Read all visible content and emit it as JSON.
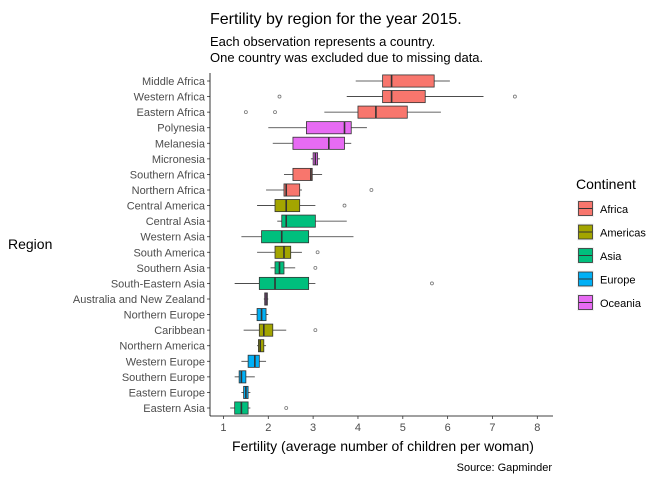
{
  "chart_data": {
    "type": "boxplot",
    "orientation": "horizontal",
    "title": "Fertility by region for the year 2015.",
    "subtitle_lines": [
      "Each observation represents a country.",
      "One country was excluded due to missing data."
    ],
    "caption": "Source: Gapminder",
    "xlabel": "Fertility (average number of children per woman)",
    "ylabel": "Region",
    "xlim": [
      0.7,
      8.35
    ],
    "x_ticks": [
      1,
      2,
      3,
      4,
      5,
      6,
      7,
      8
    ],
    "grid": false,
    "legend": {
      "title": "Continent",
      "placement": "right",
      "entries": [
        {
          "name": "Africa",
          "color": "#F8766D"
        },
        {
          "name": "Americas",
          "color": "#A3A500"
        },
        {
          "name": "Asia",
          "color": "#00BF7D"
        },
        {
          "name": "Europe",
          "color": "#00B0F6"
        },
        {
          "name": "Oceania",
          "color": "#E76BF3"
        }
      ]
    },
    "regions": [
      {
        "name": "Middle Africa",
        "continent": "Africa",
        "whisker_low": 3.95,
        "q1": 4.55,
        "median": 4.75,
        "q3": 5.7,
        "whisker_high": 6.05,
        "outliers": []
      },
      {
        "name": "Western Africa",
        "continent": "Africa",
        "whisker_low": 3.75,
        "q1": 4.55,
        "median": 4.75,
        "q3": 5.5,
        "whisker_high": 6.8,
        "outliers": [
          2.25,
          7.5
        ]
      },
      {
        "name": "Eastern Africa",
        "continent": "Africa",
        "whisker_low": 3.25,
        "q1": 4.0,
        "median": 4.4,
        "q3": 5.1,
        "whisker_high": 5.85,
        "outliers": [
          1.5,
          2.15
        ]
      },
      {
        "name": "Polynesia",
        "continent": "Oceania",
        "whisker_low": 2.0,
        "q1": 2.85,
        "median": 3.7,
        "q3": 3.85,
        "whisker_high": 4.2,
        "outliers": []
      },
      {
        "name": "Melanesia",
        "continent": "Oceania",
        "whisker_low": 2.1,
        "q1": 2.55,
        "median": 3.35,
        "q3": 3.7,
        "whisker_high": 3.85,
        "outliers": []
      },
      {
        "name": "Micronesia",
        "continent": "Oceania",
        "whisker_low": 2.95,
        "q1": 3.0,
        "median": 3.05,
        "q3": 3.1,
        "whisker_high": 3.15,
        "outliers": []
      },
      {
        "name": "Southern Africa",
        "continent": "Africa",
        "whisker_low": 2.35,
        "q1": 2.55,
        "median": 2.95,
        "q3": 2.98,
        "whisker_high": 3.2,
        "outliers": []
      },
      {
        "name": "Northern Africa",
        "continent": "Africa",
        "whisker_low": 1.95,
        "q1": 2.35,
        "median": 2.4,
        "q3": 2.7,
        "whisker_high": 2.75,
        "outliers": [
          4.3
        ]
      },
      {
        "name": "Central America",
        "continent": "Americas",
        "whisker_low": 1.75,
        "q1": 2.15,
        "median": 2.4,
        "q3": 2.7,
        "whisker_high": 3.05,
        "outliers": [
          3.7
        ]
      },
      {
        "name": "Central Asia",
        "continent": "Asia",
        "whisker_low": 2.2,
        "q1": 2.3,
        "median": 2.4,
        "q3": 3.05,
        "whisker_high": 3.75,
        "outliers": []
      },
      {
        "name": "Western Asia",
        "continent": "Asia",
        "whisker_low": 1.4,
        "q1": 1.85,
        "median": 2.3,
        "q3": 2.9,
        "whisker_high": 3.9,
        "outliers": []
      },
      {
        "name": "South America",
        "continent": "Americas",
        "whisker_low": 1.75,
        "q1": 2.15,
        "median": 2.35,
        "q3": 2.5,
        "whisker_high": 2.75,
        "outliers": [
          3.1
        ]
      },
      {
        "name": "Southern Asia",
        "continent": "Asia",
        "whisker_low": 2.05,
        "q1": 2.15,
        "median": 2.25,
        "q3": 2.35,
        "whisker_high": 2.6,
        "outliers": [
          3.05
        ]
      },
      {
        "name": "South-Eastern Asia",
        "continent": "Asia",
        "whisker_low": 1.25,
        "q1": 1.8,
        "median": 2.15,
        "q3": 2.9,
        "whisker_high": 3.05,
        "outliers": [
          5.65
        ]
      },
      {
        "name": "Australia and New Zealand",
        "continent": "Oceania",
        "whisker_low": 1.9,
        "q1": 1.92,
        "median": 1.95,
        "q3": 1.98,
        "whisker_high": 2.0,
        "outliers": []
      },
      {
        "name": "Northern Europe",
        "continent": "Europe",
        "whisker_low": 1.6,
        "q1": 1.75,
        "median": 1.85,
        "q3": 1.95,
        "whisker_high": 2.0,
        "outliers": []
      },
      {
        "name": "Caribbean",
        "continent": "Americas",
        "whisker_low": 1.45,
        "q1": 1.8,
        "median": 1.9,
        "q3": 2.1,
        "whisker_high": 2.4,
        "outliers": [
          3.05
        ]
      },
      {
        "name": "Northern America",
        "continent": "Americas",
        "whisker_low": 1.75,
        "q1": 1.78,
        "median": 1.82,
        "q3": 1.9,
        "whisker_high": 1.95,
        "outliers": []
      },
      {
        "name": "Western Europe",
        "continent": "Europe",
        "whisker_low": 1.4,
        "q1": 1.55,
        "median": 1.7,
        "q3": 1.8,
        "whisker_high": 1.95,
        "outliers": []
      },
      {
        "name": "Southern Europe",
        "continent": "Europe",
        "whisker_low": 1.25,
        "q1": 1.35,
        "median": 1.4,
        "q3": 1.5,
        "whisker_high": 1.7,
        "outliers": []
      },
      {
        "name": "Eastern Europe",
        "continent": "Europe",
        "whisker_low": 1.4,
        "q1": 1.45,
        "median": 1.5,
        "q3": 1.55,
        "whisker_high": 1.6,
        "outliers": []
      },
      {
        "name": "Eastern Asia",
        "continent": "Asia",
        "whisker_low": 1.15,
        "q1": 1.25,
        "median": 1.4,
        "q3": 1.55,
        "whisker_high": 1.6,
        "outliers": [
          2.4
        ]
      }
    ]
  }
}
